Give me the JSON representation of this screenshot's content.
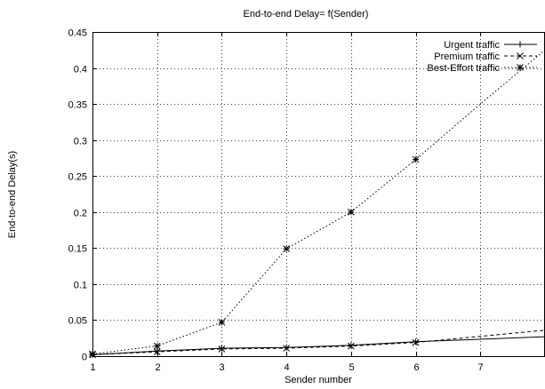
{
  "chart_data": {
    "type": "line",
    "title": "End-to-end Delay= f(Sender)",
    "xlabel": "Sender number",
    "ylabel": "End-to-end Delay(s)",
    "xlim": [
      1,
      8
    ],
    "ylim": [
      0,
      0.45
    ],
    "x_ticks": [
      1,
      2,
      3,
      4,
      5,
      6,
      7
    ],
    "y_ticks": [
      0,
      0.05,
      0.1,
      0.15,
      0.2,
      0.25,
      0.3,
      0.35,
      0.4,
      0.45
    ],
    "grid": true,
    "legend_position": "top-right",
    "series": [
      {
        "name": "Urgent traffic",
        "marker": "plus",
        "dash": "solid",
        "marker_x": [
          1,
          2,
          3,
          4,
          5,
          6
        ],
        "x": [
          1,
          2,
          3,
          4,
          5,
          6,
          8
        ],
        "y": [
          0.002,
          0.007,
          0.011,
          0.012,
          0.015,
          0.02,
          0.027
        ]
      },
      {
        "name": "Premium traffic",
        "marker": "cross",
        "dash": "dashed",
        "marker_x": [
          1,
          2,
          3,
          4,
          5,
          6
        ],
        "x": [
          1,
          2,
          3,
          4,
          5,
          6,
          8
        ],
        "y": [
          0.002,
          0.006,
          0.01,
          0.011,
          0.014,
          0.019,
          0.036
        ]
      },
      {
        "name": "Best-Effort traffic",
        "marker": "star",
        "dash": "dotted",
        "marker_x": [
          1,
          2,
          3,
          4,
          5,
          6
        ],
        "x": [
          1,
          2,
          3,
          4,
          5,
          6,
          7,
          8
        ],
        "y": [
          0.003,
          0.014,
          0.047,
          0.149,
          0.2,
          0.273,
          0.35,
          0.425
        ]
      }
    ]
  }
}
